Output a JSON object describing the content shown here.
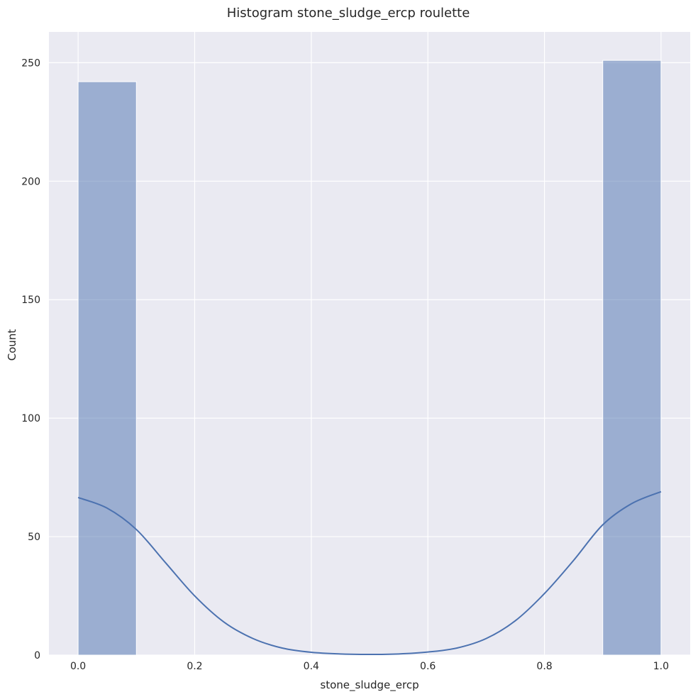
{
  "chart_data": {
    "type": "bar",
    "title": "Histogram stone_sludge_ercp roulette",
    "xlabel": "stone_sludge_ercp",
    "ylabel": "Count",
    "xlim": [
      -0.05,
      1.05
    ],
    "ylim": [
      0,
      263
    ],
    "xticks": [
      0.0,
      0.2,
      0.4,
      0.6,
      0.8,
      1.0
    ],
    "xtick_labels": [
      "0.0",
      "0.2",
      "0.4",
      "0.6",
      "0.8",
      "1.0"
    ],
    "yticks": [
      0,
      50,
      100,
      150,
      200,
      250
    ],
    "ytick_labels": [
      "0",
      "50",
      "100",
      "150",
      "200",
      "250"
    ],
    "grid": true,
    "bins": [
      {
        "x0": 0.0,
        "x1": 0.1,
        "count": 242
      },
      {
        "x0": 0.1,
        "x1": 0.2,
        "count": 0
      },
      {
        "x0": 0.2,
        "x1": 0.3,
        "count": 0
      },
      {
        "x0": 0.3,
        "x1": 0.4,
        "count": 0
      },
      {
        "x0": 0.4,
        "x1": 0.5,
        "count": 0
      },
      {
        "x0": 0.5,
        "x1": 0.6,
        "count": 0
      },
      {
        "x0": 0.6,
        "x1": 0.7,
        "count": 0
      },
      {
        "x0": 0.7,
        "x1": 0.8,
        "count": 0
      },
      {
        "x0": 0.8,
        "x1": 0.9,
        "count": 0
      },
      {
        "x0": 0.9,
        "x1": 1.0,
        "count": 251
      }
    ],
    "kde": {
      "x": [
        0.0,
        0.05,
        0.1,
        0.15,
        0.2,
        0.25,
        0.3,
        0.35,
        0.4,
        0.45,
        0.5,
        0.55,
        0.6,
        0.65,
        0.7,
        0.75,
        0.8,
        0.85,
        0.9,
        0.95,
        1.0
      ],
      "y": [
        66.5,
        62,
        53,
        39,
        25,
        14,
        7,
        3,
        1.2,
        0.5,
        0.3,
        0.5,
        1.3,
        3,
        7,
        14.5,
        26,
        40,
        55,
        64,
        69
      ]
    },
    "colors": {
      "background": "#eaeaf2",
      "grid": "#ffffff",
      "bar_fill": "#4c72b0",
      "bar_opacity": 0.5,
      "bar_edge": "#ffffff",
      "kde_line": "#4c72b0"
    }
  }
}
